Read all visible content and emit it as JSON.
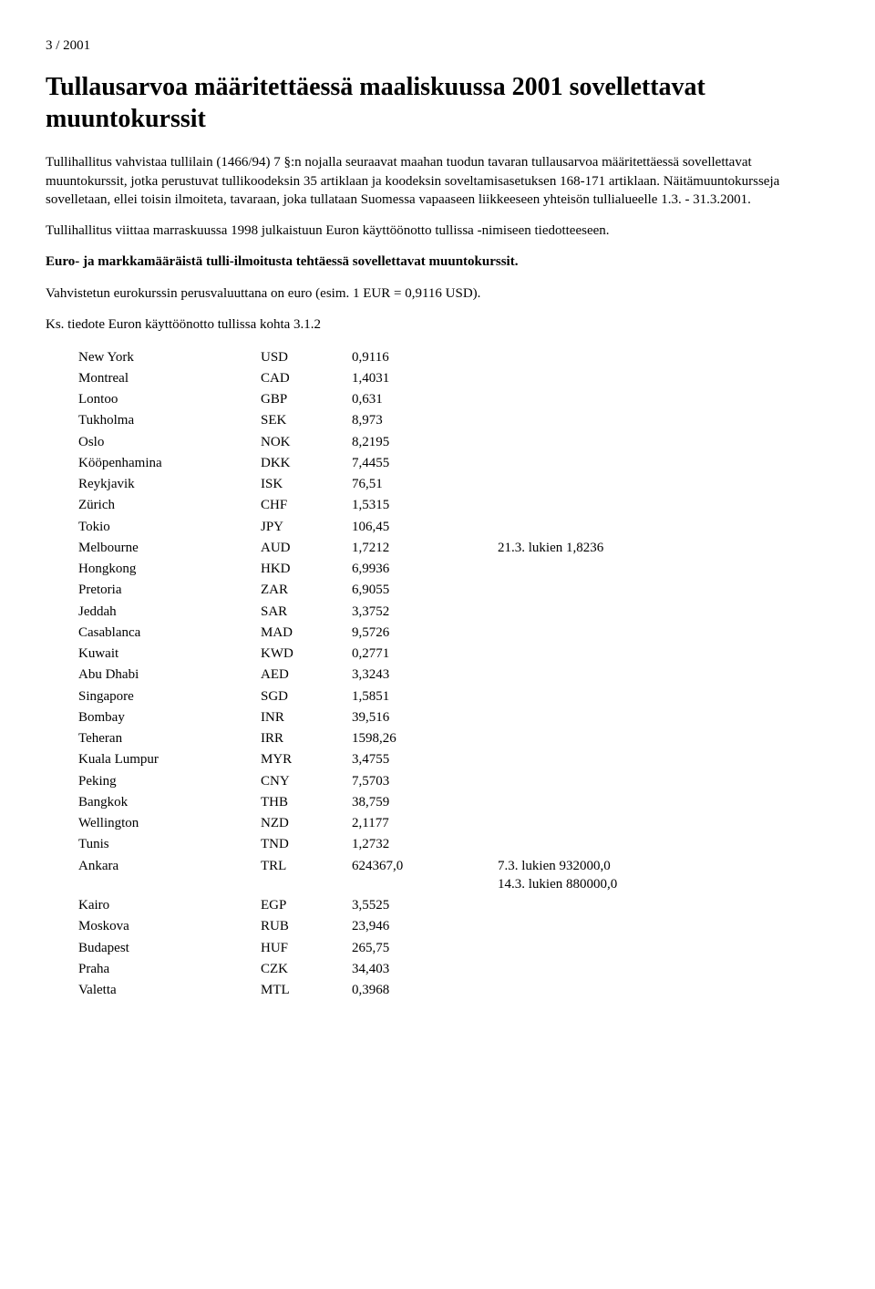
{
  "header": "3 / 2001",
  "title": "Tullausarvoa määritettäessä maaliskuussa 2001 sovellettavat muuntokurssit",
  "para1": "Tullihallitus vahvistaa tullilain (1466/94) 7 §:n nojalla seuraavat maahan tuodun tavaran tullausarvoa määritettäessä sovellettavat muuntokurssit, jotka perustuvat tullikoodeksin 35 artiklaan ja koodeksin soveltamisasetuksen 168-171 artiklaan. Näitämuuntokursseja sovelletaan, ellei toisin ilmoiteta, tavaraan, joka tullataan Suomessa vapaaseen liikkeeseen yhteisön tullialueelle 1.3. - 31.3.2001.",
  "para2": "Tullihallitus viittaa marraskuussa 1998 julkaistuun Euron käyttöönotto tullissa -nimiseen tiedotteeseen.",
  "para3": "Euro- ja markkamääräistä tulli-ilmoitusta tehtäessä sovellettavat muuntokurssit.",
  "para4": "Vahvistetun eurokurssin perusvaluuttana on euro (esim. 1 EUR = 0,9116 USD).",
  "para5": "Ks. tiedote Euron käyttöönotto tullissa kohta 3.1.2",
  "table": {
    "rows": [
      {
        "city": "New York",
        "code": "USD",
        "val": "0,9116",
        "note": ""
      },
      {
        "city": "Montreal",
        "code": "CAD",
        "val": "1,4031",
        "note": ""
      },
      {
        "city": "Lontoo",
        "code": "GBP",
        "val": "0,631",
        "note": ""
      },
      {
        "city": "Tukholma",
        "code": "SEK",
        "val": "8,973",
        "note": ""
      },
      {
        "city": "Oslo",
        "code": "NOK",
        "val": "8,2195",
        "note": ""
      },
      {
        "city": "Kööpenhamina",
        "code": "DKK",
        "val": "7,4455",
        "note": ""
      },
      {
        "city": "Reykjavik",
        "code": "ISK",
        "val": "76,51",
        "note": ""
      },
      {
        "city": "Zürich",
        "code": "CHF",
        "val": "1,5315",
        "note": ""
      },
      {
        "city": "Tokio",
        "code": "JPY",
        "val": "106,45",
        "note": ""
      },
      {
        "city": "Melbourne",
        "code": "AUD",
        "val": "1,7212",
        "note": "21.3. lukien 1,8236"
      },
      {
        "city": "Hongkong",
        "code": "HKD",
        "val": "6,9936",
        "note": ""
      },
      {
        "city": "Pretoria",
        "code": "ZAR",
        "val": "6,9055",
        "note": ""
      },
      {
        "city": "Jeddah",
        "code": "SAR",
        "val": "3,3752",
        "note": ""
      },
      {
        "city": "Casablanca",
        "code": "MAD",
        "val": "9,5726",
        "note": ""
      },
      {
        "city": "Kuwait",
        "code": "KWD",
        "val": "0,2771",
        "note": ""
      },
      {
        "city": "Abu Dhabi",
        "code": "AED",
        "val": "3,3243",
        "note": ""
      },
      {
        "city": "Singapore",
        "code": "SGD",
        "val": "1,5851",
        "note": ""
      },
      {
        "city": "Bombay",
        "code": "INR",
        "val": "39,516",
        "note": ""
      },
      {
        "city": "Teheran",
        "code": "IRR",
        "val": "1598,26",
        "note": ""
      },
      {
        "city": "Kuala Lumpur",
        "code": "MYR",
        "val": "3,4755",
        "note": ""
      },
      {
        "city": "Peking",
        "code": "CNY",
        "val": "7,5703",
        "note": ""
      },
      {
        "city": "Bangkok",
        "code": "THB",
        "val": "38,759",
        "note": ""
      },
      {
        "city": "Wellington",
        "code": "NZD",
        "val": "2,1177",
        "note": ""
      },
      {
        "city": "Tunis",
        "code": "TND",
        "val": "1,2732",
        "note": ""
      },
      {
        "city": "Ankara",
        "code": "TRL",
        "val": "624367,0",
        "note": "7.3. lukien 932000,0\n14.3. lukien 880000,0"
      },
      {
        "city": "Kairo",
        "code": "EGP",
        "val": "3,5525",
        "note": ""
      },
      {
        "city": "Moskova",
        "code": "RUB",
        "val": "23,946",
        "note": ""
      },
      {
        "city": "Budapest",
        "code": "HUF",
        "val": "265,75",
        "note": ""
      },
      {
        "city": "Praha",
        "code": "CZK",
        "val": "34,403",
        "note": ""
      },
      {
        "city": "Valetta",
        "code": "MTL",
        "val": "0,3968",
        "note": ""
      }
    ]
  }
}
